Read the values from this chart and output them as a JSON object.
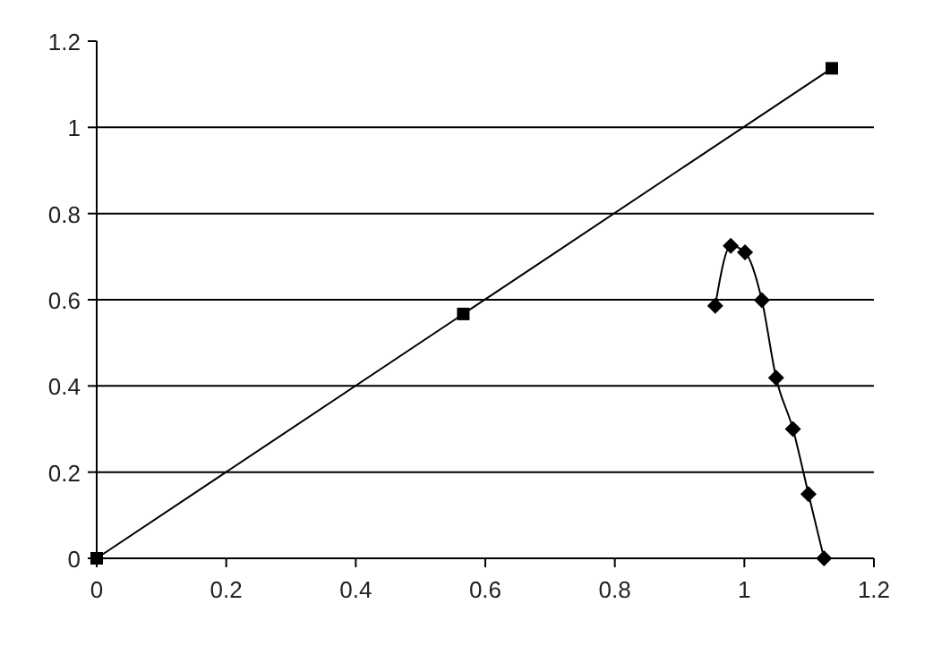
{
  "chart_data": {
    "type": "line",
    "xlim": [
      0,
      1.2
    ],
    "ylim": [
      0,
      1.2
    ],
    "xticks": [
      0,
      0.2,
      0.4,
      0.6,
      0.8,
      1,
      1.2
    ],
    "yticks": [
      0,
      0.2,
      0.4,
      0.6,
      0.8,
      1,
      1.2
    ],
    "grid": "y",
    "line_style": "solid",
    "series": [
      {
        "color": "#000000",
        "marker": "square",
        "x": [
          0,
          0.566,
          1.135
        ],
        "values": [
          0,
          0.567,
          1.137
        ]
      },
      {
        "color": "#000000",
        "marker": "diamond",
        "x": [
          0.955,
          0.979,
          1.001,
          1.027,
          1.049,
          1.075,
          1.099,
          1.123
        ],
        "values": [
          0.586,
          0.725,
          0.71,
          0.599,
          0.419,
          0.3,
          0.149,
          0
        ]
      }
    ]
  }
}
